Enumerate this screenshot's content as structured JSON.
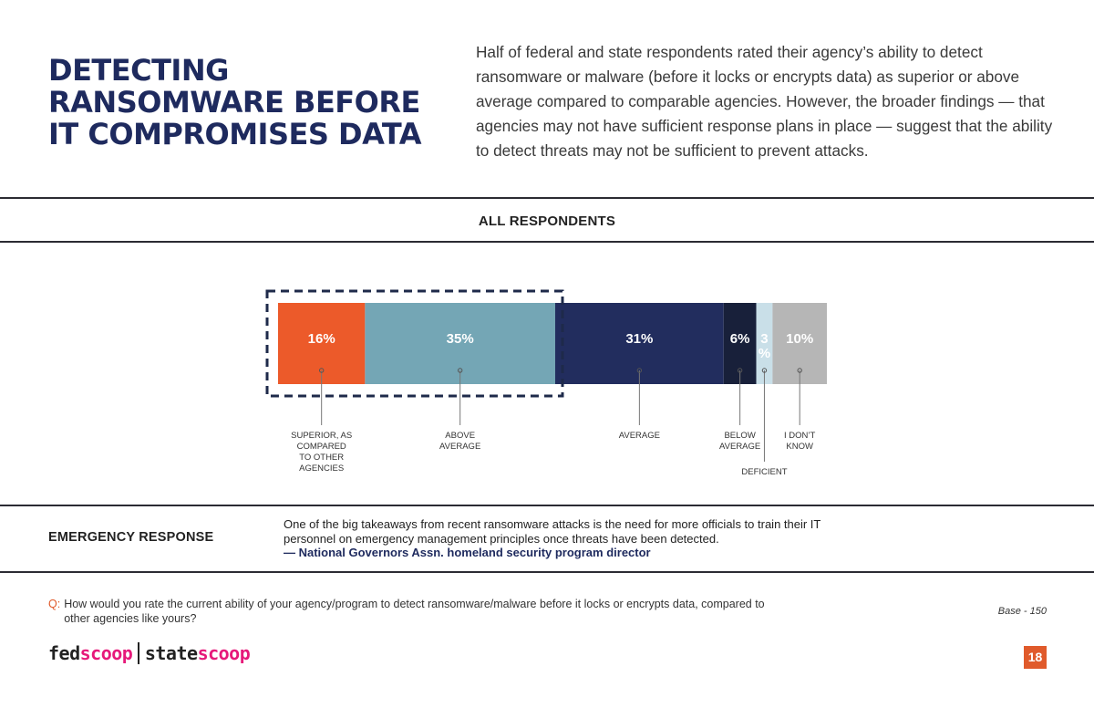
{
  "header": {
    "title_lines": [
      "DETECTING",
      "RANSOMWARE BEFORE",
      "IT COMPROMISES DATA"
    ],
    "intro": "Half of federal and state respondents rated their agency’s ability to detect ransomware or malware (before it locks or encrypts data) as superior or above average compared to comparable agencies. However, the broader findings — that agencies may not have sufficient response plans in place — suggest that the ability to detect threats may not be sufficient to prevent attacks."
  },
  "section_label": "ALL RESPONDENTS",
  "chart_data": {
    "type": "bar",
    "orientation": "horizontal-stacked",
    "categories": [
      "SUPERIOR, AS COMPARED TO OTHER AGENCIES",
      "ABOVE AVERAGE",
      "AVERAGE",
      "BELOW AVERAGE",
      "DEFICIENT",
      "I DON’T KNOW"
    ],
    "label_lines": [
      [
        "SUPERIOR, AS",
        "COMPARED",
        "TO OTHER",
        "AGENCIES"
      ],
      [
        "ABOVE",
        "AVERAGE"
      ],
      [
        "AVERAGE"
      ],
      [
        "BELOW",
        "AVERAGE"
      ],
      [
        "DEFICIENT"
      ],
      [
        "I DON’T",
        "KNOW"
      ]
    ],
    "values": [
      16,
      35,
      31,
      6,
      3,
      10
    ],
    "value_labels": [
      "16%",
      "35%",
      "31%",
      "6%",
      "3\n%",
      "10%"
    ],
    "colors": [
      "#ec5a2a",
      "#74a6b5",
      "#222d5e",
      "#18203a",
      "#c9dfe8",
      "#b6b6b6"
    ],
    "highlight": {
      "categories": [
        "SUPERIOR, AS COMPARED TO OTHER AGENCIES",
        "ABOVE AVERAGE"
      ],
      "style": "dashed-box"
    }
  },
  "emergency": {
    "title": "EMERGENCY RESPONSE",
    "quote": "One of the big takeaways from recent ransomware attacks is the need for more officials to train their IT personnel on emergency management principles once threats have been detected.",
    "attribution": "— National Governors Assn. homeland security program director"
  },
  "question": {
    "prefix": "Q:",
    "text": "How would you rate the current ability of your agency/program to detect ransomware/malware before it locks or encrypts data, compared to other agencies like yours?"
  },
  "base": "Base - 150",
  "footer": {
    "logo_fed": "fed",
    "logo_scoop1": "scoop",
    "logo_state": "state",
    "logo_scoop2": "scoop",
    "page_number": "18"
  }
}
